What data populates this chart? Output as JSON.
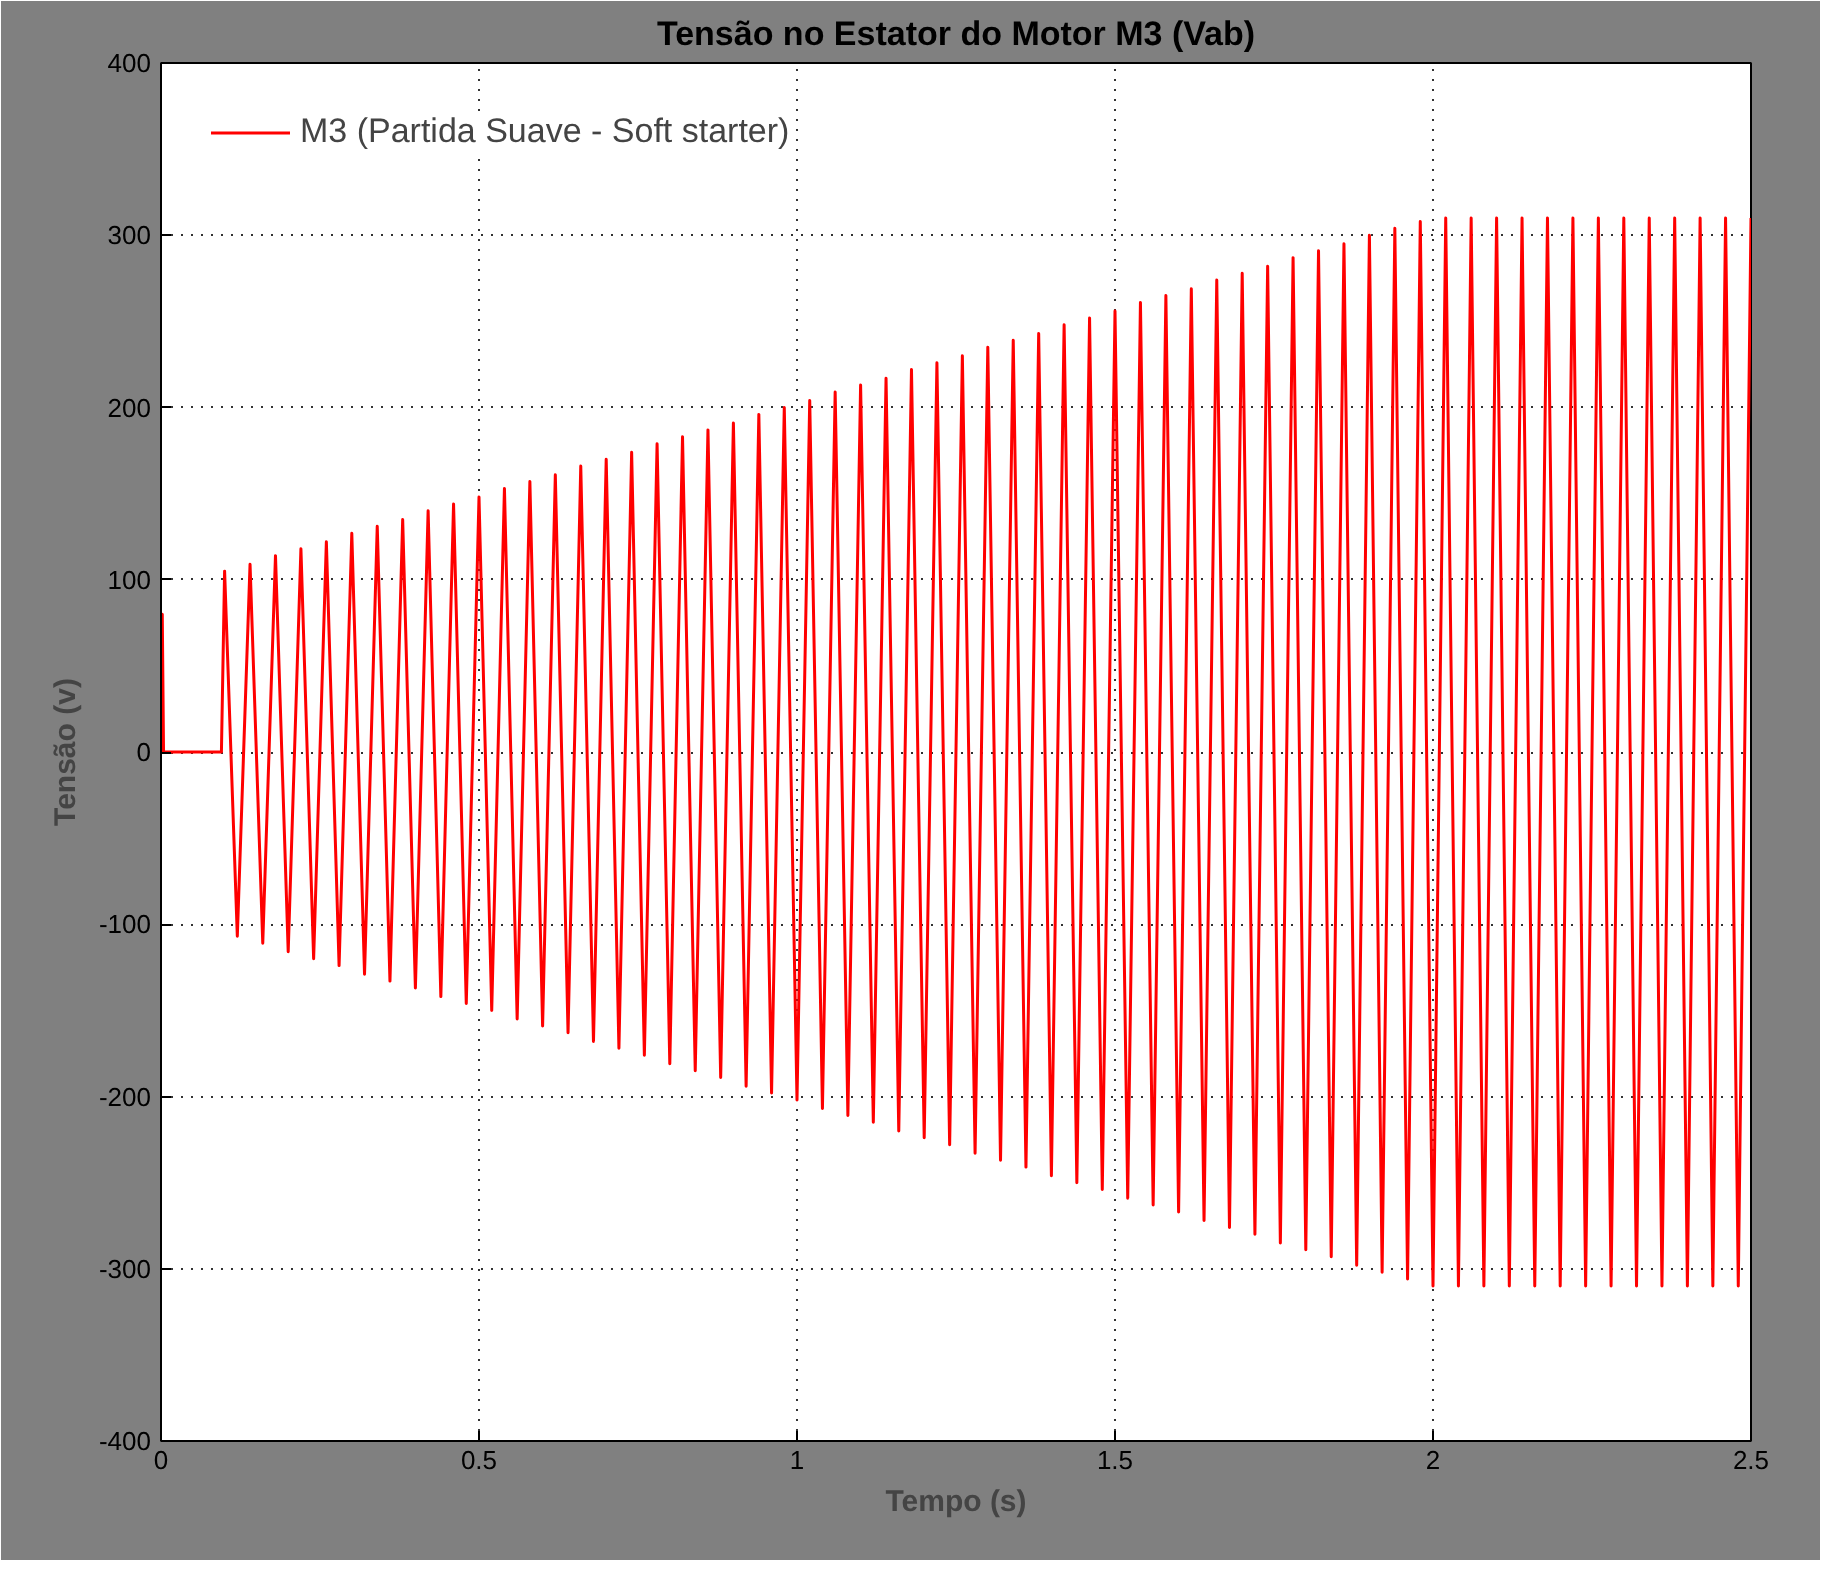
{
  "chart_data": {
    "type": "line",
    "title": "Tensão no Estator do Motor M3 (Vab)",
    "xlabel": "Tempo (s)",
    "ylabel": "Tensão (v)",
    "xlim": [
      0,
      2.5
    ],
    "ylim": [
      -400,
      400
    ],
    "xticks": [
      0,
      0.5,
      1,
      1.5,
      2,
      2.5
    ],
    "yticks": [
      -400,
      -300,
      -200,
      -100,
      0,
      100,
      200,
      300,
      400
    ],
    "grid": true,
    "legend": "top left",
    "series": [
      {
        "name": "M3 (Partida Suave - Soft starter)",
        "color": "#ff0000",
        "x": [
          0,
          0.002,
          0.004,
          0.095,
          0.1,
          0.12,
          0.14,
          0.16,
          0.18,
          0.2,
          0.22,
          0.24,
          0.26,
          0.28,
          0.3,
          0.32,
          0.34,
          0.36,
          0.38,
          0.4,
          0.42,
          0.44,
          0.46,
          0.48,
          0.5,
          0.52,
          0.54,
          0.56,
          0.58,
          0.6,
          0.62,
          0.64,
          0.66,
          0.68,
          0.7,
          0.72,
          0.74,
          0.76,
          0.78,
          0.8,
          0.82,
          0.84,
          0.86,
          0.88,
          0.9,
          0.92,
          0.94,
          0.96,
          0.98,
          1.0,
          1.02,
          1.04,
          1.06,
          1.08,
          1.1,
          1.12,
          1.14,
          1.16,
          1.18,
          1.2,
          1.22,
          1.24,
          1.26,
          1.28,
          1.3,
          1.32,
          1.34,
          1.36,
          1.38,
          1.4,
          1.42,
          1.44,
          1.46,
          1.48,
          1.5,
          1.52,
          1.54,
          1.56,
          1.58,
          1.6,
          1.62,
          1.64,
          1.66,
          1.68,
          1.7,
          1.72,
          1.74,
          1.76,
          1.78,
          1.8,
          1.82,
          1.84,
          1.86,
          1.88,
          1.9,
          1.92,
          1.94,
          1.96,
          1.98,
          2.0,
          2.02,
          2.04,
          2.06,
          2.08,
          2.1,
          2.12,
          2.14,
          2.16,
          2.18,
          2.2,
          2.22,
          2.24,
          2.26,
          2.28,
          2.3,
          2.32,
          2.34,
          2.36,
          2.38,
          2.4,
          2.42,
          2.44,
          2.46,
          2.48,
          2.5
        ],
        "values": [
          0,
          80,
          0,
          0,
          105,
          -107,
          109,
          -111,
          114,
          -116,
          118,
          -120,
          122,
          -124,
          127,
          -129,
          131,
          -133,
          135,
          -137,
          140,
          -142,
          144,
          -146,
          148,
          -150,
          153,
          -155,
          157,
          -159,
          161,
          -163,
          166,
          -168,
          170,
          -172,
          174,
          -176,
          179,
          -181,
          183,
          -185,
          187,
          -189,
          191,
          -194,
          196,
          -198,
          200,
          -202,
          204,
          -207,
          209,
          -211,
          213,
          -215,
          217,
          -220,
          222,
          -224,
          226,
          -228,
          230,
          -233,
          235,
          -237,
          239,
          -241,
          243,
          -246,
          248,
          -250,
          252,
          -254,
          256,
          -259,
          261,
          -263,
          265,
          -267,
          269,
          -272,
          274,
          -276,
          278,
          -280,
          282,
          -285,
          287,
          -289,
          291,
          -293,
          295,
          -298,
          300,
          -302,
          304,
          -306,
          308,
          -310,
          310,
          -310,
          310,
          -310,
          310,
          -310,
          310,
          -310,
          310,
          -310,
          310,
          -310,
          310,
          -310,
          310,
          -310,
          310,
          -310,
          310,
          -310,
          310,
          -310,
          310,
          -310,
          310
        ]
      }
    ]
  }
}
